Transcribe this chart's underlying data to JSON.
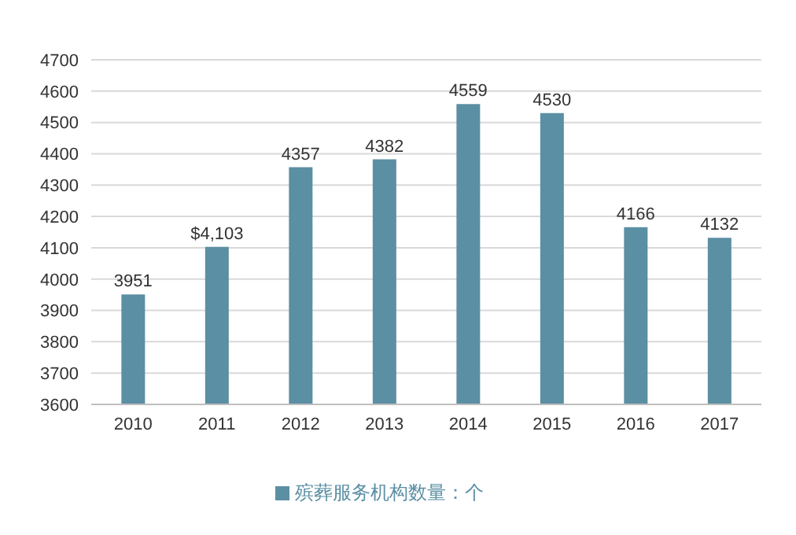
{
  "chart_data": {
    "type": "bar",
    "categories": [
      "2010",
      "2011",
      "2012",
      "2013",
      "2014",
      "2015",
      "2016",
      "2017"
    ],
    "series": [
      {
        "name": "殡葬服务机构数量：个",
        "color": "#5b8fa3",
        "values": [
          3951,
          4103,
          4357,
          4382,
          4559,
          4530,
          4166,
          4132
        ],
        "value_labels": [
          "3951",
          "$4,103",
          "4357",
          "4382",
          "4559",
          "4530",
          "4166",
          "4132"
        ]
      }
    ],
    "ylim": [
      3600,
      4700
    ],
    "yticks": [
      3600,
      3700,
      3800,
      3900,
      4000,
      4100,
      4200,
      4300,
      4400,
      4500,
      4600,
      4700
    ],
    "grid": "y",
    "legend": "bottom"
  }
}
